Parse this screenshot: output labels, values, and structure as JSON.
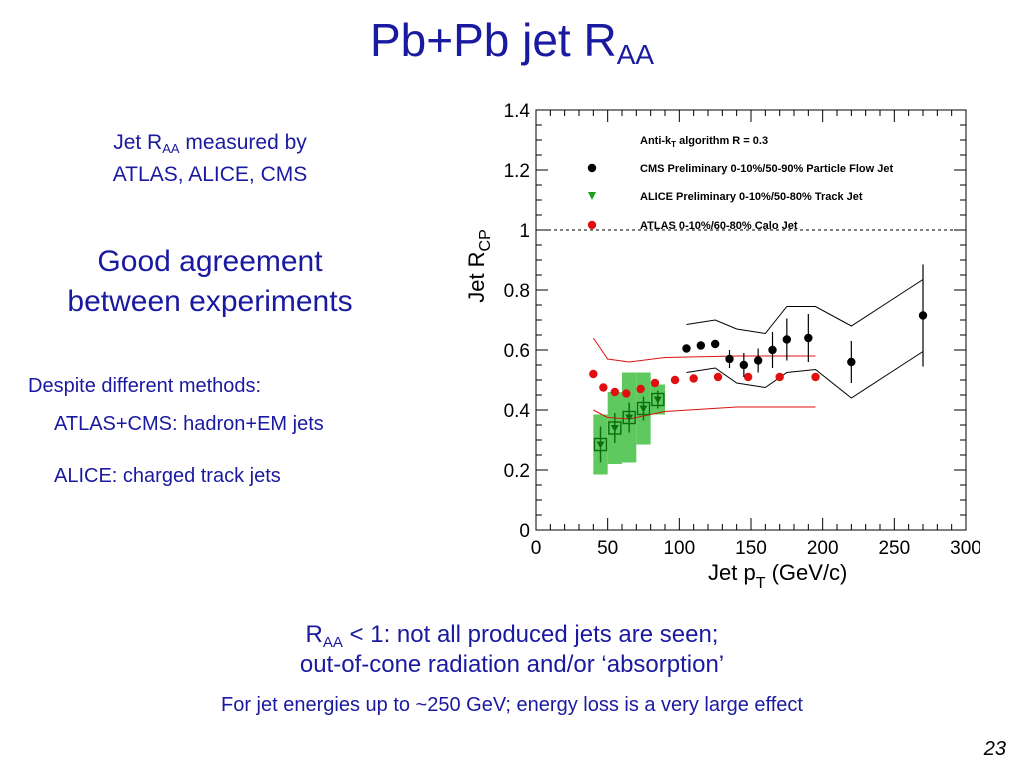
{
  "slide": {
    "title_main": "Pb+Pb jet R",
    "title_sub": "AA",
    "left": {
      "l1_pre": "Jet R",
      "l1_sub": "AA",
      "l1_post": " measured by",
      "l2": "ATLAS, ALICE, CMS",
      "agree1": "Good agreement",
      "agree2": "between experiments",
      "despite": "Despite different methods:",
      "atlas_cms": "ATLAS+CMS: hadron+EM jets",
      "alice": "ALICE: charged track jets"
    },
    "bottom": {
      "b1_pre": "R",
      "b1_sub": "AA",
      "b1_post": " < 1: not all produced jets are seen;",
      "b2": "out-of-cone radiation and/or ‘absorption’",
      "b3": "For jet energies up to ~250 GeV; energy loss is a very large effect"
    },
    "page_number": "23"
  },
  "chart_data": {
    "type": "scatter",
    "xlim": [
      0,
      300
    ],
    "ylim": [
      0,
      1.4
    ],
    "x_ticks": [
      0,
      50,
      100,
      150,
      200,
      250,
      300
    ],
    "y_ticks": [
      0,
      0.2,
      0.4,
      0.6,
      0.8,
      1,
      1.2,
      1.4
    ],
    "x_tick_labels": [
      "0",
      "50",
      "100",
      "150",
      "200",
      "250",
      "300"
    ],
    "y_tick_labels": [
      "0",
      "0.2",
      "0.4",
      "0.6",
      "0.8",
      "1",
      "1.2",
      "1.4"
    ],
    "xlabel_main": "Jet p",
    "xlabel_sub": "T",
    "xlabel_post": " (GeV/c)",
    "ylabel_main": "Jet R",
    "ylabel_sub": "CP",
    "reference_line_y": 1,
    "legend_header_main": "Anti-k",
    "legend_header_sub": "T",
    "legend_header_post": " algorithm R = 0.3",
    "legend_placement": "top-right",
    "series": [
      {
        "name": "CMS Preliminary 0-10%/50-90% Particle Flow Jet",
        "color": "#000000",
        "marker": "circle",
        "points": [
          {
            "x": 105,
            "y": 0.605,
            "err": 0.0
          },
          {
            "x": 115,
            "y": 0.615,
            "err": 0.0
          },
          {
            "x": 125,
            "y": 0.62,
            "err": 0.0
          },
          {
            "x": 135,
            "y": 0.57,
            "err": 0.03
          },
          {
            "x": 145,
            "y": 0.55,
            "err": 0.04
          },
          {
            "x": 155,
            "y": 0.565,
            "err": 0.04
          },
          {
            "x": 165,
            "y": 0.6,
            "err": 0.06
          },
          {
            "x": 175,
            "y": 0.635,
            "err": 0.07
          },
          {
            "x": 190,
            "y": 0.64,
            "err": 0.08
          },
          {
            "x": 220,
            "y": 0.56,
            "err": 0.07
          },
          {
            "x": 270,
            "y": 0.715,
            "err": 0.17
          }
        ],
        "band_upper": [
          [
            105,
            0.685
          ],
          [
            125,
            0.7
          ],
          [
            140,
            0.67
          ],
          [
            160,
            0.655
          ],
          [
            175,
            0.745
          ],
          [
            195,
            0.745
          ],
          [
            220,
            0.68
          ],
          [
            270,
            0.835
          ]
        ],
        "band_lower": [
          [
            105,
            0.525
          ],
          [
            125,
            0.54
          ],
          [
            140,
            0.49
          ],
          [
            160,
            0.475
          ],
          [
            175,
            0.525
          ],
          [
            195,
            0.535
          ],
          [
            220,
            0.44
          ],
          [
            270,
            0.595
          ]
        ]
      },
      {
        "name": "ALICE Preliminary 0-10%/50-80% Track Jet",
        "color": "#1aa01a",
        "marker": "triangle",
        "points": [
          {
            "x": 45,
            "y": 0.285,
            "err": 0.06,
            "sys": 0.1
          },
          {
            "x": 55,
            "y": 0.34,
            "err": 0.05,
            "sys": 0.12
          },
          {
            "x": 65,
            "y": 0.375,
            "err": 0.05,
            "sys": 0.15
          },
          {
            "x": 75,
            "y": 0.405,
            "err": 0.04,
            "sys": 0.12
          },
          {
            "x": 85,
            "y": 0.435,
            "err": 0.03,
            "sys": 0.05
          }
        ]
      },
      {
        "name": "ATLAS 0-10%/60-80% Calo Jet",
        "color": "#e01010",
        "marker": "circle",
        "points": [
          {
            "x": 40,
            "y": 0.52
          },
          {
            "x": 47,
            "y": 0.475
          },
          {
            "x": 55,
            "y": 0.46
          },
          {
            "x": 63,
            "y": 0.455
          },
          {
            "x": 73,
            "y": 0.47
          },
          {
            "x": 83,
            "y": 0.49
          },
          {
            "x": 97,
            "y": 0.5
          },
          {
            "x": 110,
            "y": 0.505
          },
          {
            "x": 127,
            "y": 0.51
          },
          {
            "x": 148,
            "y": 0.51
          },
          {
            "x": 170,
            "y": 0.51
          },
          {
            "x": 195,
            "y": 0.51
          }
        ],
        "band_upper": [
          [
            40,
            0.64
          ],
          [
            50,
            0.57
          ],
          [
            65,
            0.56
          ],
          [
            90,
            0.575
          ],
          [
            140,
            0.58
          ],
          [
            195,
            0.58
          ]
        ],
        "band_lower": [
          [
            40,
            0.4
          ],
          [
            50,
            0.375
          ],
          [
            65,
            0.37
          ],
          [
            90,
            0.395
          ],
          [
            140,
            0.41
          ],
          [
            195,
            0.41
          ]
        ]
      }
    ]
  }
}
